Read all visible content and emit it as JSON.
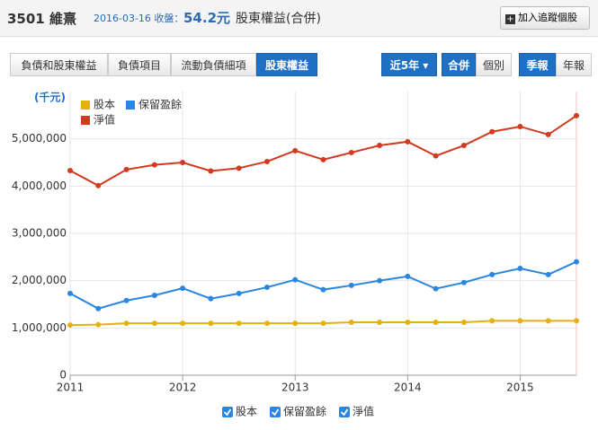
{
  "header": {
    "title": "3501 維熹",
    "date": "2016-03-16 收盤：",
    "price": "54.2元",
    "subtitle": "股東權益(合併)",
    "follow_button": "加入追蹤個股"
  },
  "tabs": [
    "負債和股東權益",
    "負債項目",
    "流動負債細項",
    "股東權益"
  ],
  "controls": {
    "period": "近5年",
    "scope": [
      "合併",
      "個別"
    ],
    "frequency": [
      "季報",
      "年報"
    ]
  },
  "chart_data": {
    "type": "line",
    "y_label": "(千元)",
    "x": [
      2011,
      2011.25,
      2011.5,
      2011.75,
      2012,
      2012.25,
      2012.5,
      2012.75,
      2013,
      2013.25,
      2013.5,
      2013.75,
      2014,
      2014.25,
      2014.5,
      2014.75,
      2015,
      2015.25,
      2015.5
    ],
    "xlim": [
      2011,
      2015.5
    ],
    "xticks": [
      2011,
      2012,
      2013,
      2014,
      2015
    ],
    "ylim": [
      0,
      6000000
    ],
    "yticks": [
      0,
      {
        "value": 1000000,
        "label": "1,000,000"
      },
      {
        "value": 2000000,
        "label": "2,000,000"
      },
      {
        "value": 3000000,
        "label": "3,000,000"
      },
      {
        "value": 4000000,
        "label": "4,000,000"
      },
      {
        "value": 5000000,
        "label": "5,000,000"
      }
    ],
    "grid": true,
    "series": [
      {
        "name": "股本",
        "color": "#e5b110",
        "values": [
          1060000,
          1070000,
          1100000,
          1100000,
          1100000,
          1100000,
          1100000,
          1100000,
          1100000,
          1100000,
          1120000,
          1120000,
          1120000,
          1120000,
          1120000,
          1150000,
          1150000,
          1150000,
          1150000
        ]
      },
      {
        "name": "保留盈餘",
        "color": "#2a86e0",
        "values": [
          1730000,
          1410000,
          1580000,
          1690000,
          1840000,
          1620000,
          1730000,
          1860000,
          2020000,
          1810000,
          1900000,
          2000000,
          2090000,
          1830000,
          1960000,
          2130000,
          2260000,
          2130000,
          2400000
        ]
      },
      {
        "name": "淨值",
        "color": "#d2391e",
        "values": [
          4330000,
          4010000,
          4350000,
          4450000,
          4500000,
          4320000,
          4380000,
          4520000,
          4750000,
          4560000,
          4710000,
          4860000,
          4940000,
          4640000,
          4860000,
          5150000,
          5260000,
          5090000,
          5490000
        ]
      }
    ]
  }
}
